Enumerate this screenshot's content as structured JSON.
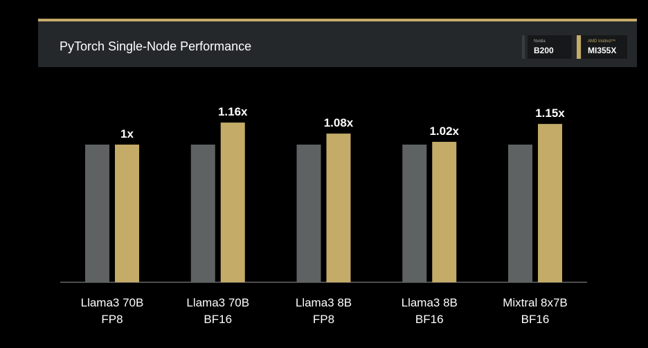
{
  "chart_data": {
    "type": "bar",
    "title": "PyTorch Single-Node Performance",
    "xlabel": "",
    "ylabel": "",
    "ylim": [
      0,
      2
    ],
    "grid": false,
    "legend_position": "top-right",
    "categories": [
      [
        "Llama3 70B",
        "FP8"
      ],
      [
        "Llama3 70B",
        "BF16"
      ],
      [
        "Llama3 8B",
        "FP8"
      ],
      [
        "Llama3 8B",
        "BF16"
      ],
      [
        "Mixtral 8x7B",
        "BF16"
      ]
    ],
    "series": [
      {
        "name": "B200",
        "vendor": "Nvidia",
        "color": "#5f6263",
        "values": [
          1,
          1,
          1,
          1,
          1
        ]
      },
      {
        "name": "MI355X",
        "vendor": "AMD Instinct™",
        "color": "#c4ab68",
        "values": [
          1,
          1.16,
          1.08,
          1.02,
          1.15
        ]
      }
    ],
    "data_labels": [
      "1x",
      "1.16x",
      "1.08x",
      "1.02x",
      "1.15x"
    ]
  }
}
